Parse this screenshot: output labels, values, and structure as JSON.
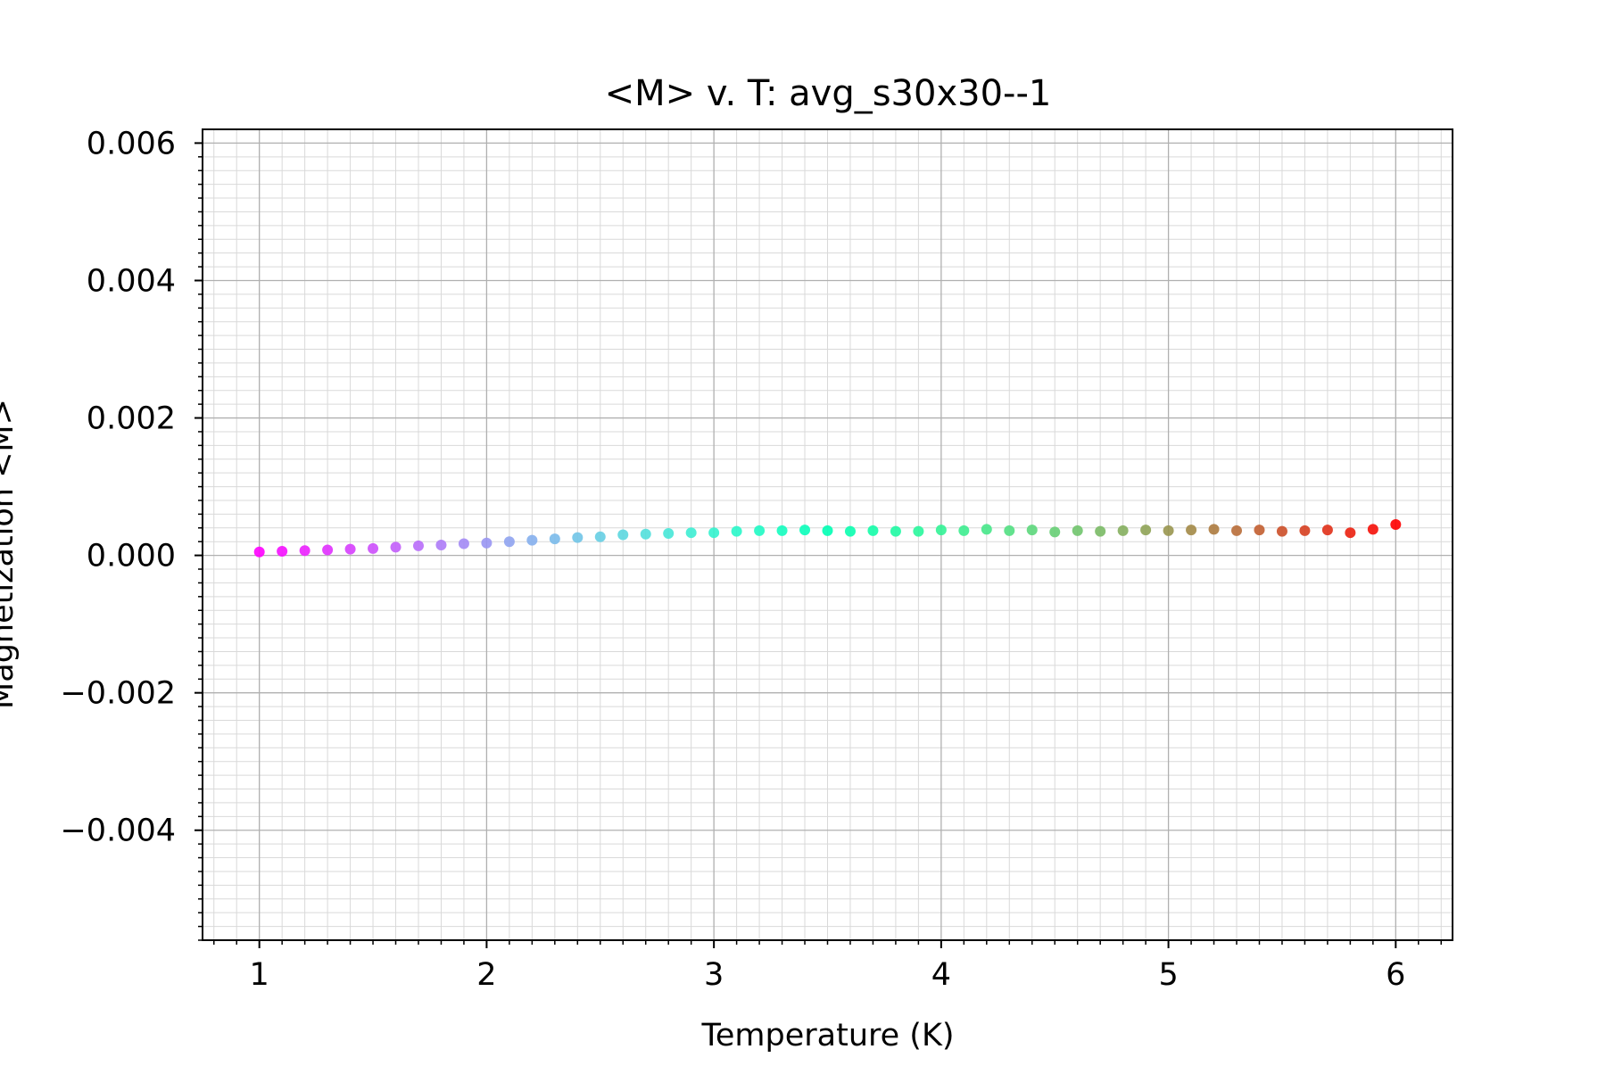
{
  "chart_data": {
    "type": "scatter",
    "title": "<M> v. T: avg_s30x30--1",
    "xlabel": "Temperature (K)",
    "ylabel": "Magnetization <M>",
    "xlim": [
      0.75,
      6.25
    ],
    "ylim": [
      -0.0056,
      0.0062
    ],
    "x_ticks": [
      1,
      2,
      3,
      4,
      5,
      6
    ],
    "x_tick_labels": [
      "1",
      "2",
      "3",
      "4",
      "5",
      "6"
    ],
    "y_ticks": [
      -0.004,
      -0.002,
      0.0,
      0.002,
      0.004,
      0.006
    ],
    "y_tick_labels": [
      "−0.004",
      "−0.002",
      "0.000",
      "0.002",
      "0.004",
      "0.006"
    ],
    "grid": true,
    "minor_grid": true,
    "colormap": "rainbow",
    "series": [
      {
        "x": [
          1.0,
          1.1,
          1.2,
          1.3,
          1.4,
          1.5,
          1.6,
          1.7,
          1.8,
          1.9,
          2.0,
          2.1,
          2.2,
          2.3,
          2.4,
          2.5,
          2.6,
          2.7,
          2.8,
          2.9,
          3.0,
          3.1,
          3.2,
          3.3,
          3.4,
          3.5,
          3.6,
          3.7,
          3.8,
          3.9,
          4.0,
          4.1,
          4.2,
          4.3,
          4.4,
          4.5,
          4.6,
          4.7,
          4.8,
          4.9,
          5.0,
          5.1,
          5.2,
          5.3,
          5.4,
          5.5,
          5.6,
          5.7,
          5.8,
          5.9,
          6.0
        ],
        "y": [
          5e-05,
          6e-05,
          7e-05,
          8e-05,
          9e-05,
          0.0001,
          0.00012,
          0.00014,
          0.00015,
          0.00017,
          0.00018,
          0.0002,
          0.00022,
          0.00024,
          0.00026,
          0.00027,
          0.0003,
          0.00031,
          0.00032,
          0.00033,
          0.00033,
          0.00035,
          0.00036,
          0.00036,
          0.00037,
          0.00036,
          0.00035,
          0.00036,
          0.00035,
          0.00035,
          0.00037,
          0.00036,
          0.00038,
          0.00036,
          0.00037,
          0.00034,
          0.00036,
          0.00035,
          0.00036,
          0.00037,
          0.00036,
          0.00037,
          0.00038,
          0.00036,
          0.00037,
          0.00035,
          0.00036,
          0.00037,
          0.00033,
          0.00038,
          0.00045
        ]
      }
    ]
  }
}
